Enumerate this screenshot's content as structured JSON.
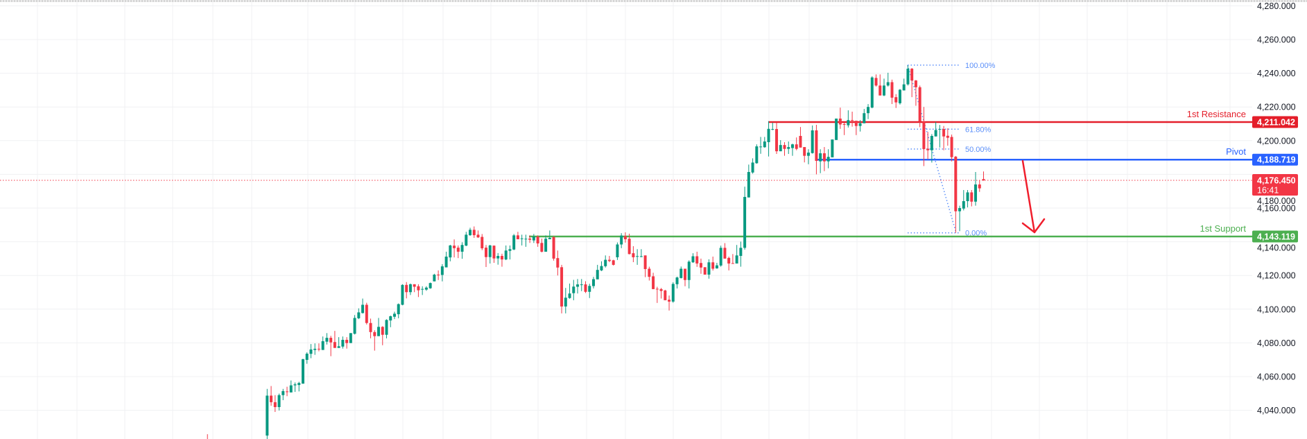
{
  "chart_data": {
    "type": "candlestick",
    "title": "",
    "xlabel": "",
    "ylabel": "",
    "ylim": [
      4023,
      4282
    ],
    "grid": true,
    "colors": {
      "up": "#089981",
      "down": "#f23645",
      "resistance": "#e41e2a",
      "pivot": "#2962ff",
      "support": "#4caf50",
      "fib": "#5b8ff9",
      "arrow": "#f01e2c"
    },
    "y_ticks": [
      "4,280.000",
      "4,260.000",
      "4,240.000",
      "4,220.000",
      "4,200.000",
      "4,180.000",
      "4,160.000",
      "4,140.000",
      "4,120.000",
      "4,100.000",
      "4,080.000",
      "4,060.000",
      "4,040.000"
    ],
    "y_tick_values": [
      4280,
      4260,
      4240,
      4220,
      4200,
      4180,
      4160,
      4140,
      4120,
      4100,
      4080,
      4060,
      4040
    ],
    "earlier_bars": [
      {
        "bar": -15,
        "ohlc": [
          4020,
          4025.8,
          4000,
          4005
        ]
      }
    ],
    "ohlc": [
      [
        4025,
        4052.7,
        4020,
        4048.7
      ],
      [
        4048.7,
        4054.4,
        4042.7,
        4044.8
      ],
      [
        4044.8,
        4049,
        4039,
        4041.9
      ],
      [
        4041.9,
        4049.9,
        4039.9,
        4049
      ],
      [
        4049,
        4052.7,
        4046,
        4051.4
      ],
      [
        4051.2,
        4054,
        4048.4,
        4050.9
      ],
      [
        4050.6,
        4057.7,
        4050.6,
        4054.8
      ],
      [
        4054.8,
        4056.5,
        4050.9,
        4055.4
      ],
      [
        4055,
        4056.9,
        4051.2,
        4056.2
      ],
      [
        4055.8,
        4070.6,
        4055.8,
        4070.3
      ],
      [
        4069.9,
        4074.4,
        4067.6,
        4073.6
      ],
      [
        4073.5,
        4079.3,
        4070.9,
        4076.1
      ],
      [
        4075.8,
        4079.7,
        4072.9,
        4076.5
      ],
      [
        4076.5,
        4079.7,
        4075,
        4076.2
      ],
      [
        4075.8,
        4083.8,
        4075.8,
        4081
      ],
      [
        4080.7,
        4085.8,
        4079,
        4083
      ],
      [
        4083,
        4084.2,
        4072.1,
        4080.3
      ],
      [
        4080.5,
        4087.1,
        4077,
        4077
      ],
      [
        4077,
        4083.4,
        4077,
        4078
      ],
      [
        4077.8,
        4083.8,
        4076.6,
        4081.8
      ],
      [
        4081.8,
        4083.4,
        4076.6,
        4079.9
      ],
      [
        4079.9,
        4085.8,
        4079.9,
        4085.8
      ],
      [
        4085.4,
        4096.5,
        4085,
        4094.8
      ],
      [
        4094.6,
        4100.5,
        4094.1,
        4098.1
      ],
      [
        4097.7,
        4106.3,
        4097.4,
        4102.6
      ],
      [
        4102.6,
        4103.8,
        4090.9,
        4091.8
      ],
      [
        4091.8,
        4094.4,
        4082.7,
        4086.4
      ],
      [
        4086.4,
        4087.5,
        4075.4,
        4084
      ],
      [
        4084,
        4094.8,
        4084,
        4089.5
      ],
      [
        4089.5,
        4089.9,
        4078.6,
        4084.8
      ],
      [
        4084.8,
        4094,
        4082.7,
        4093.6
      ],
      [
        4093.3,
        4096.2,
        4089.3,
        4095.8
      ],
      [
        4095.5,
        4098.5,
        4094.1,
        4097.3
      ],
      [
        4097,
        4103.4,
        4094.6,
        4103
      ],
      [
        4102.6,
        4114.8,
        4102.3,
        4114.4
      ],
      [
        4114.4,
        4116.1,
        4106.4,
        4110.1
      ],
      [
        4110.1,
        4115.2,
        4108.4,
        4114.8
      ],
      [
        4114.8,
        4114.8,
        4110.1,
        4113.3
      ],
      [
        4113.6,
        4114.8,
        4107.2,
        4111.2
      ],
      [
        4111.8,
        4113.6,
        4108.4,
        4112
      ],
      [
        4111.6,
        4113.6,
        4110.9,
        4112.8
      ],
      [
        4112.4,
        4115.8,
        4112.1,
        4115.5
      ],
      [
        4116.5,
        4121,
        4116.5,
        4120.5
      ],
      [
        4120.5,
        4123,
        4117.3,
        4120.3
      ],
      [
        4120.3,
        4126.7,
        4116.5,
        4125.4
      ],
      [
        4124.8,
        4134.1,
        4124.8,
        4131.2
      ],
      [
        4130.7,
        4138.2,
        4128.4,
        4137.8
      ],
      [
        4137.7,
        4141.4,
        4130.7,
        4136.2
      ],
      [
        4136.5,
        4137.8,
        4130.3,
        4134.1
      ],
      [
        4134.1,
        4139.7,
        4129.9,
        4138.1
      ],
      [
        4137.7,
        4145.9,
        4137.4,
        4144.2
      ],
      [
        4143.9,
        4148.3,
        4143.5,
        4147.1
      ],
      [
        4147.1,
        4149.1,
        4142.3,
        4143.9
      ],
      [
        4144.2,
        4146.7,
        4142.3,
        4142.6
      ],
      [
        4142.9,
        4144.6,
        4135,
        4136.1
      ],
      [
        4136.5,
        4138.1,
        4125,
        4130.9
      ],
      [
        4130.9,
        4138.2,
        4127.1,
        4137.8
      ],
      [
        4137.7,
        4137.8,
        4127.5,
        4130.1
      ],
      [
        4130.1,
        4133.3,
        4126.4,
        4131.6
      ],
      [
        4131.6,
        4132.9,
        4125.2,
        4129.5
      ],
      [
        4129.5,
        4137.8,
        4129.1,
        4134.8
      ],
      [
        4134.6,
        4137.8,
        4129.5,
        4135.6
      ],
      [
        4135.4,
        4144.6,
        4135,
        4143.8
      ],
      [
        4143.8,
        4145.9,
        4141.5,
        4141.5
      ],
      [
        4141.9,
        4144.2,
        4137.8,
        4142
      ],
      [
        4141.5,
        4144.2,
        4137,
        4141.8
      ],
      [
        4141.9,
        4143.8,
        4139.3,
        4141.2
      ],
      [
        4140.8,
        4144.6,
        4139.3,
        4143.1
      ],
      [
        4143.1,
        4143.8,
        4137,
        4139
      ],
      [
        4139.3,
        4141.9,
        4133.7,
        4134.1
      ],
      [
        4134.1,
        4143.8,
        4134.1,
        4141.8
      ],
      [
        4141.5,
        4146.7,
        4141.5,
        4142.3
      ],
      [
        4142.7,
        4143.4,
        4128.8,
        4130
      ],
      [
        4130.3,
        4134.8,
        4120,
        4124.7
      ],
      [
        4124.9,
        4126.3,
        4097.5,
        4101.6
      ],
      [
        4101.6,
        4112.6,
        4097.5,
        4106.8
      ],
      [
        4106.6,
        4115.2,
        4106.2,
        4109.3
      ],
      [
        4109.5,
        4117.4,
        4105.3,
        4113.4
      ],
      [
        4113.3,
        4117.9,
        4109.3,
        4114.7
      ],
      [
        4114.5,
        4117.9,
        4110.7,
        4114.7
      ],
      [
        4114.7,
        4116.6,
        4109.6,
        4110.3
      ],
      [
        4110.3,
        4115.1,
        4106.6,
        4113.8
      ],
      [
        4113.7,
        4119.2,
        4112.3,
        4117.8
      ],
      [
        4117.7,
        4126.3,
        4117.7,
        4123.3
      ],
      [
        4123,
        4128.4,
        4122.6,
        4125.6
      ],
      [
        4125.5,
        4131.9,
        4124.7,
        4129.3
      ],
      [
        4129.3,
        4131.6,
        4127.9,
        4128.6
      ],
      [
        4129,
        4129.3,
        4125.9,
        4126.3
      ],
      [
        4130.8,
        4139.6,
        4129.2,
        4138.4
      ],
      [
        4138.4,
        4145.1,
        4136.2,
        4143.7
      ],
      [
        4143.4,
        4145.6,
        4139.5,
        4141.5
      ],
      [
        4141.8,
        4144.8,
        4132.5,
        4132.7
      ],
      [
        4133.2,
        4137.4,
        4127.9,
        4130.8
      ],
      [
        4131.2,
        4135.6,
        4126.3,
        4131.5
      ],
      [
        4131.1,
        4135.6,
        4130.8,
        4131.4
      ],
      [
        4131.9,
        4131.9,
        4119,
        4123.8
      ],
      [
        4124,
        4125.2,
        4117,
        4119.2
      ],
      [
        4119.5,
        4121.6,
        4111.9,
        4111.9
      ],
      [
        4112.1,
        4113.3,
        4103.7,
        4112
      ],
      [
        4111.9,
        4112.6,
        4106.3,
        4110.8
      ],
      [
        4111.1,
        4111.5,
        4105.3,
        4105.3
      ],
      [
        4105.6,
        4108.1,
        4099.2,
        4104.5
      ],
      [
        4104.5,
        4116,
        4103.8,
        4115
      ],
      [
        4114.8,
        4119.3,
        4112.3,
        4118.8
      ],
      [
        4118.5,
        4125.3,
        4118.2,
        4124
      ],
      [
        4124,
        4124,
        4113.6,
        4117.3
      ],
      [
        4117.3,
        4129,
        4112.3,
        4128.2
      ],
      [
        4127.8,
        4133.2,
        4127.5,
        4131.4
      ],
      [
        4131.4,
        4134.1,
        4125.1,
        4127.1
      ],
      [
        4127.4,
        4130,
        4121,
        4124.7
      ],
      [
        4124.9,
        4124.9,
        4120.5,
        4120.5
      ],
      [
        4120.5,
        4129.6,
        4118.1,
        4127.8
      ],
      [
        4127.8,
        4131.2,
        4122.9,
        4124
      ],
      [
        4124.2,
        4127.5,
        4124,
        4126
      ],
      [
        4125.9,
        4137.7,
        4125.2,
        4136.4
      ],
      [
        4136.4,
        4139.2,
        4130,
        4130
      ],
      [
        4130.4,
        4131.2,
        4123,
        4127.1
      ],
      [
        4127.3,
        4132.7,
        4127.1,
        4127.1
      ],
      [
        4127.1,
        4138.1,
        4127.1,
        4131.9
      ],
      [
        4131.6,
        4140.1,
        4125.2,
        4136.4
      ],
      [
        4136.4,
        4172.7,
        4135.3,
        4166.6
      ],
      [
        4166.3,
        4185.8,
        4166.3,
        4181.4
      ],
      [
        4181.1,
        4189.5,
        4180.4,
        4187
      ],
      [
        4186.6,
        4197.8,
        4186.3,
        4196.6
      ],
      [
        4196.3,
        4202.2,
        4192.2,
        4196.5
      ],
      [
        4196.1,
        4202.2,
        4195.8,
        4199.5
      ],
      [
        4199.1,
        4211.5,
        4190.6,
        4207
      ],
      [
        4206.6,
        4210.7,
        4206.2,
        4206.9
      ],
      [
        4206.9,
        4210.7,
        4192.1,
        4193.7
      ],
      [
        4193.7,
        4200.3,
        4193.7,
        4197.4
      ],
      [
        4197.4,
        4199.1,
        4191,
        4195.1
      ],
      [
        4195.1,
        4199.5,
        4192.1,
        4196.2
      ],
      [
        4195.6,
        4198.2,
        4191,
        4197.8
      ],
      [
        4197.8,
        4201.9,
        4194.3,
        4195.1
      ],
      [
        4202.8,
        4208.1,
        4195.9,
        4195.9
      ],
      [
        4196.2,
        4196.2,
        4187.1,
        4191
      ],
      [
        4191,
        4194.9,
        4186,
        4192.9
      ],
      [
        4192.6,
        4209,
        4192.3,
        4206.1
      ],
      [
        4206.1,
        4209.4,
        4180,
        4188
      ],
      [
        4187.7,
        4194.9,
        4180.7,
        4192.5
      ],
      [
        4192.5,
        4196.2,
        4181.9,
        4187.7
      ],
      [
        4187.7,
        4194.9,
        4183.6,
        4190.4
      ],
      [
        4190.1,
        4200.7,
        4190.1,
        4200.7
      ],
      [
        4200.4,
        4213.1,
        4200.4,
        4213.1
      ],
      [
        4213.1,
        4219.6,
        4207,
        4209.6
      ],
      [
        4209.8,
        4210.7,
        4203.3,
        4209.6
      ],
      [
        4209.1,
        4218,
        4207.8,
        4212.2
      ],
      [
        4212.2,
        4217.2,
        4208.3,
        4211.8
      ],
      [
        4211.8,
        4211.8,
        4203.3,
        4208.7
      ],
      [
        4208.7,
        4212.2,
        4205.4,
        4210.3
      ],
      [
        4210.3,
        4218.8,
        4210.3,
        4216.3
      ],
      [
        4216.3,
        4221.7,
        4212.8,
        4220
      ],
      [
        4219.6,
        4238.2,
        4219.2,
        4237.5
      ],
      [
        4237.2,
        4239.3,
        4232.1,
        4232.7
      ],
      [
        4232.7,
        4239.3,
        4226.8,
        4226.8
      ],
      [
        4226.8,
        4236.8,
        4226.4,
        4232.7
      ],
      [
        4232.7,
        4240.3,
        4232.1,
        4234.7
      ],
      [
        4234.7,
        4236.2,
        4221.7,
        4225.5
      ],
      [
        4225.8,
        4227.6,
        4219.4,
        4222.7
      ],
      [
        4222.2,
        4230.6,
        4221.4,
        4230.2
      ],
      [
        4229.8,
        4236.8,
        4229.8,
        4233.4
      ],
      [
        4233.4,
        4244.7,
        4232.7,
        4242.7
      ],
      [
        4242.7,
        4243.1,
        4225.8,
        4235.7
      ],
      [
        4235.7,
        4236,
        4220.7,
        4231.7
      ],
      [
        4231.7,
        4232.7,
        4208,
        4211.4
      ],
      [
        4211.4,
        4220,
        4184.9,
        4195
      ],
      [
        4195.2,
        4205.2,
        4189,
        4194.3
      ],
      [
        4194.3,
        4203.9,
        4187,
        4202.8
      ],
      [
        4202.5,
        4211.1,
        4202.5,
        4206.3
      ],
      [
        4206.6,
        4209.3,
        4195.9,
        4206.9
      ],
      [
        4206.9,
        4208.7,
        4194.3,
        4202.5
      ],
      [
        4202.9,
        4207.3,
        4197,
        4201.7
      ],
      [
        4202.2,
        4203.6,
        4187.7,
        4190.2
      ],
      [
        4190.5,
        4190.9,
        4145.3,
        4158.1
      ],
      [
        4158.1,
        4161.4,
        4146.3,
        4160
      ],
      [
        4159.7,
        4170.7,
        4158.6,
        4164.1
      ],
      [
        4164.1,
        4170.7,
        4160.4,
        4169.3
      ],
      [
        4169.3,
        4170.7,
        4161,
        4163.8
      ],
      [
        4163.8,
        4181.4,
        4161.4,
        4174
      ],
      [
        4174,
        4176.5,
        4169.6,
        4171.7
      ],
      [
        4177.2,
        4181.7,
        4176.2,
        4176.45
      ]
    ],
    "levels": [
      {
        "name": "1st Resistance",
        "price": 4211.042,
        "badge": "4,211.042",
        "color": "#e41e2a"
      },
      {
        "name": "Pivot",
        "price": 4188.719,
        "badge": "4,188.719",
        "color": "#2962ff"
      },
      {
        "name": "1st Support",
        "price": 4143.119,
        "badge": "4,143.119",
        "color": "#4caf50"
      }
    ],
    "current_price": {
      "price": 4176.45,
      "badge": "4,176.450",
      "countdown": "16:41",
      "color": "#f23645"
    },
    "fibonacci": {
      "high": 4244.8,
      "low": 4145.3,
      "levels": [
        {
          "ratio": 1.0,
          "label": "100.00%"
        },
        {
          "ratio": 0.618,
          "label": "61.80%"
        },
        {
          "ratio": 0.5,
          "label": "50.00%"
        },
        {
          "ratio": 0.0,
          "label": "0.00%"
        }
      ]
    },
    "annotation": {
      "type": "arrow",
      "direction": "down",
      "from_price": 4188.7,
      "to_price": 4145
    }
  }
}
